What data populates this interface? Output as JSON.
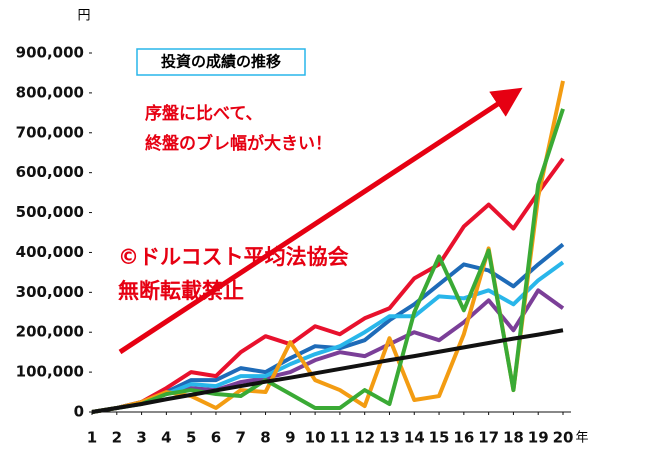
{
  "chart_data": {
    "type": "line",
    "title": "投資の成績の推移",
    "y_unit": "円",
    "x_unit": "年",
    "annotations": [
      "序盤に比べて、",
      "終盤のブレ幅が大きい！",
      "©ドルコスト平均法協会",
      "無断転載禁止"
    ],
    "x": [
      1,
      2,
      3,
      4,
      5,
      6,
      7,
      8,
      9,
      10,
      11,
      12,
      13,
      14,
      15,
      16,
      17,
      18,
      19,
      20
    ],
    "xlim": [
      1,
      20
    ],
    "xticks": [
      1,
      2,
      3,
      4,
      5,
      6,
      7,
      8,
      9,
      10,
      11,
      12,
      13,
      14,
      15,
      16,
      17,
      18,
      19,
      20
    ],
    "ylim": [
      0,
      900000
    ],
    "yticks": [
      0,
      {
        "value": 100000,
        "label": "100,000"
      },
      {
        "value": 200000,
        "label": "200,000"
      },
      {
        "value": 300000,
        "label": "300,000"
      },
      {
        "value": 400000,
        "label": "400,000"
      },
      {
        "value": 500000,
        "label": "500,000"
      },
      {
        "value": 600000,
        "label": "600,000"
      },
      {
        "value": 700000,
        "label": "700,000"
      },
      {
        "value": 800000,
        "label": "800,000"
      },
      {
        "value": 900000,
        "label": "900,000"
      }
    ],
    "series": [
      {
        "color": "#7b3f98",
        "values": [
          0,
          10000,
          25000,
          45000,
          60000,
          55000,
          75000,
          85000,
          100000,
          130000,
          150000,
          140000,
          170000,
          200000,
          180000,
          225000,
          280000,
          205000,
          305000,
          260000
        ]
      },
      {
        "color": "#1e6bb8",
        "values": [
          0,
          10000,
          25000,
          50000,
          80000,
          80000,
          110000,
          100000,
          135000,
          165000,
          160000,
          180000,
          230000,
          270000,
          320000,
          370000,
          355000,
          315000,
          370000,
          420000
        ]
      },
      {
        "color": "#29b6ea",
        "values": [
          0,
          10000,
          25000,
          45000,
          70000,
          65000,
          90000,
          90000,
          120000,
          145000,
          165000,
          200000,
          240000,
          240000,
          290000,
          285000,
          305000,
          270000,
          330000,
          375000
        ]
      },
      {
        "color": "#e8112d",
        "values": [
          0,
          10000,
          25000,
          60000,
          100000,
          90000,
          150000,
          190000,
          170000,
          215000,
          195000,
          235000,
          260000,
          335000,
          370000,
          465000,
          520000,
          460000,
          550000,
          635000
        ]
      },
      {
        "color": "#f39c12",
        "values": [
          0,
          10000,
          25000,
          50000,
          40000,
          10000,
          55000,
          50000,
          175000,
          80000,
          55000,
          15000,
          185000,
          30000,
          40000,
          195000,
          410000,
          55000,
          540000,
          830000
        ]
      },
      {
        "color": "#3aaa35",
        "values": [
          0,
          10000,
          20000,
          45000,
          55000,
          45000,
          40000,
          80000,
          45000,
          10000,
          10000,
          55000,
          20000,
          250000,
          390000,
          255000,
          405000,
          55000,
          570000,
          760000
        ]
      },
      {
        "color": "#111111",
        "values": [
          0,
          10000,
          20000,
          32000,
          43000,
          54000,
          65000,
          76000,
          86000,
          97000,
          108000,
          119000,
          130000,
          140000,
          151000,
          162000,
          173000,
          184000,
          194000,
          205000
        ]
      }
    ]
  }
}
